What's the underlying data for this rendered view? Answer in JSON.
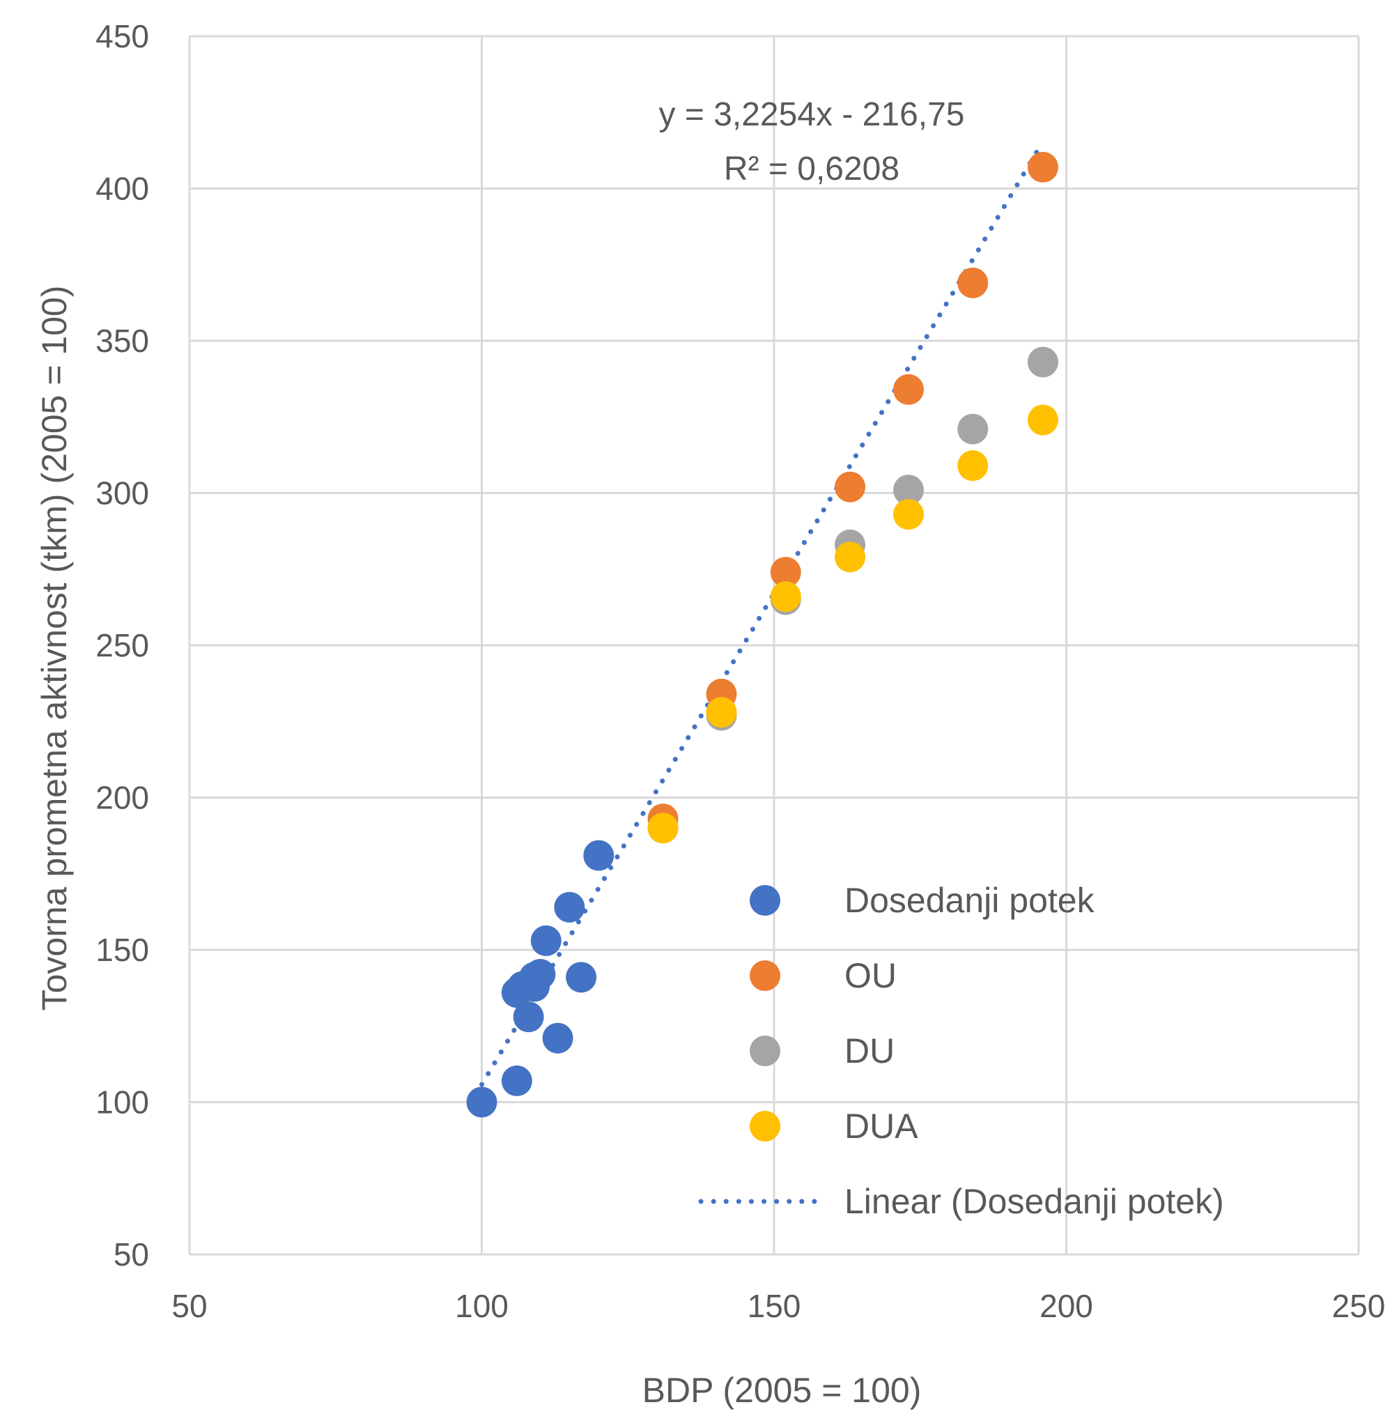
{
  "chart_data": {
    "type": "scatter",
    "xlabel": "BDP (2005 = 100)",
    "ylabel": "Tovorna prometna aktivnost (tkm) (2005 = 100)",
    "xlim": [
      50,
      250
    ],
    "ylim": [
      50,
      450
    ],
    "x_ticks": [
      50,
      100,
      150,
      200,
      250
    ],
    "y_ticks": [
      50,
      100,
      150,
      200,
      250,
      300,
      350,
      400,
      450
    ],
    "grid": true,
    "legend_position": "lower-right inside",
    "series": [
      {
        "name": "Dosedanji potek",
        "color": "#4472C4",
        "points": [
          [
            100,
            100
          ],
          [
            106,
            107
          ],
          [
            106,
            136
          ],
          [
            107,
            138
          ],
          [
            108,
            128
          ],
          [
            109,
            141
          ],
          [
            109,
            138
          ],
          [
            110,
            142
          ],
          [
            111,
            153
          ],
          [
            113,
            121
          ],
          [
            115,
            164
          ],
          [
            117,
            141
          ],
          [
            120,
            181
          ]
        ]
      },
      {
        "name": "OU",
        "color": "#ED7D31",
        "points": [
          [
            131,
            193
          ],
          [
            141,
            234
          ],
          [
            152,
            274
          ],
          [
            163,
            302
          ],
          [
            173,
            334
          ],
          [
            184,
            369
          ],
          [
            196,
            407
          ]
        ]
      },
      {
        "name": "DU",
        "color": "#A5A5A5",
        "points": [
          [
            131,
            190
          ],
          [
            141,
            227
          ],
          [
            152,
            265
          ],
          [
            163,
            283
          ],
          [
            173,
            301
          ],
          [
            184,
            321
          ],
          [
            196,
            343
          ]
        ]
      },
      {
        "name": "DUA",
        "color": "#FFC000",
        "points": [
          [
            131,
            190
          ],
          [
            141,
            228
          ],
          [
            152,
            266
          ],
          [
            163,
            279
          ],
          [
            173,
            293
          ],
          [
            184,
            309
          ],
          [
            196,
            324
          ]
        ]
      }
    ],
    "trendline": {
      "name": "Linear (Dosedanji potek)",
      "color": "#4472C4",
      "style": "dotted",
      "slope": 3.2254,
      "intercept": -216.75,
      "x_range": [
        100,
        196
      ],
      "equation": "y = 3,2254x - 216,75",
      "r_squared": "R² = 0,6208"
    }
  }
}
